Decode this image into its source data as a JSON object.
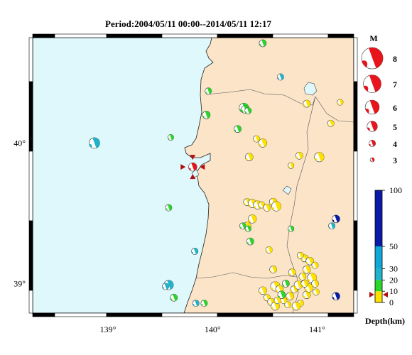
{
  "title": "Period:2004/05/11 00:00--2014/05/11 12:17",
  "lon_ticks": [
    "139°",
    "140°",
    "141°"
  ],
  "lat_ticks": [
    "40°",
    "39°"
  ],
  "legend": {
    "header": "M",
    "magnitudes": [
      "8",
      "7",
      "6",
      "5",
      "4",
      "3"
    ],
    "depth_ticks": [
      "100",
      "50",
      "30",
      "20",
      "10",
      "0"
    ],
    "depth_label": "Depth(km)"
  },
  "colors": {
    "sea": "#dff8fb",
    "land": "#fbe4c8",
    "shallow": "#ffe100",
    "mid": "#2bd62b",
    "deep": "#20b4cc",
    "deepest": "#0a1aa8",
    "recent": "#e8141c",
    "recent_marker": "#b01010"
  },
  "events": [
    {
      "lon": 140.48,
      "lat": 40.71,
      "m": 3.4,
      "d": "mid"
    },
    {
      "lon": 140.65,
      "lat": 40.47,
      "m": 3.3,
      "d": "deep"
    },
    {
      "lon": 139.96,
      "lat": 40.37,
      "m": 3.3,
      "d": "mid"
    },
    {
      "lon": 140.3,
      "lat": 40.25,
      "m": 3.8,
      "d": "mid"
    },
    {
      "lon": 140.31,
      "lat": 40.24,
      "m": 3.5,
      "d": "mid"
    },
    {
      "lon": 140.34,
      "lat": 40.23,
      "m": 3.3,
      "d": "mid"
    },
    {
      "lon": 140.24,
      "lat": 40.1,
      "m": 3.4,
      "d": "mid"
    },
    {
      "lon": 139.94,
      "lat": 40.2,
      "m": 3.5,
      "d": "mid"
    },
    {
      "lon": 139.6,
      "lat": 40.04,
      "m": 3.2,
      "d": "mid"
    },
    {
      "lon": 138.87,
      "lat": 40.0,
      "m": 4.0,
      "d": "deep"
    },
    {
      "lon": 140.9,
      "lat": 40.28,
      "m": 3.4,
      "d": "shallow"
    },
    {
      "lon": 141.13,
      "lat": 40.14,
      "m": 3.3,
      "d": "shallow"
    },
    {
      "lon": 141.22,
      "lat": 40.29,
      "m": 3.2,
      "d": "shallow"
    },
    {
      "lon": 140.42,
      "lat": 40.03,
      "m": 3.3,
      "d": "shallow"
    },
    {
      "lon": 140.48,
      "lat": 40.0,
      "m": 3.6,
      "d": "shallow"
    },
    {
      "lon": 140.35,
      "lat": 39.9,
      "m": 3.5,
      "d": "shallow"
    },
    {
      "lon": 140.75,
      "lat": 39.84,
      "m": 3.2,
      "d": "shallow"
    },
    {
      "lon": 140.83,
      "lat": 39.91,
      "m": 3.4,
      "d": "shallow"
    },
    {
      "lon": 141.02,
      "lat": 39.9,
      "m": 3.8,
      "d": "shallow"
    },
    {
      "lon": 140.33,
      "lat": 39.58,
      "m": 3.4,
      "d": "shallow"
    },
    {
      "lon": 140.38,
      "lat": 39.57,
      "m": 3.6,
      "d": "shallow"
    },
    {
      "lon": 140.43,
      "lat": 39.56,
      "m": 3.6,
      "d": "shallow"
    },
    {
      "lon": 140.47,
      "lat": 39.56,
      "m": 3.3,
      "d": "shallow"
    },
    {
      "lon": 140.52,
      "lat": 39.54,
      "m": 3.4,
      "d": "shallow"
    },
    {
      "lon": 140.58,
      "lat": 39.58,
      "m": 3.5,
      "d": "shallow"
    },
    {
      "lon": 140.61,
      "lat": 39.55,
      "m": 3.8,
      "d": "shallow"
    },
    {
      "lon": 140.38,
      "lat": 39.46,
      "m": 3.6,
      "d": "shallow"
    },
    {
      "lon": 140.33,
      "lat": 39.41,
      "m": 3.5,
      "d": "shallow"
    },
    {
      "lon": 140.29,
      "lat": 39.41,
      "m": 3.3,
      "d": "mid"
    },
    {
      "lon": 140.34,
      "lat": 39.39,
      "m": 3.2,
      "d": "mid"
    },
    {
      "lon": 140.75,
      "lat": 39.39,
      "m": 3.2,
      "d": "mid"
    },
    {
      "lon": 140.36,
      "lat": 39.3,
      "m": 3.4,
      "d": "mid"
    },
    {
      "lon": 141.18,
      "lat": 39.46,
      "m": 3.5,
      "d": "deepest"
    },
    {
      "lon": 141.14,
      "lat": 39.41,
      "m": 3.3,
      "d": "deep"
    },
    {
      "lon": 139.58,
      "lat": 39.54,
      "m": 3.3,
      "d": "mid"
    },
    {
      "lon": 139.83,
      "lat": 39.23,
      "m": 3.3,
      "d": "deep"
    },
    {
      "lon": 139.58,
      "lat": 38.99,
      "m": 3.8,
      "d": "deep"
    },
    {
      "lon": 139.55,
      "lat": 38.98,
      "m": 3.3,
      "d": "deep"
    },
    {
      "lon": 139.63,
      "lat": 38.9,
      "m": 3.4,
      "d": "mid"
    },
    {
      "lon": 139.84,
      "lat": 38.86,
      "m": 3.3,
      "d": "deep"
    },
    {
      "lon": 139.92,
      "lat": 38.86,
      "m": 3.3,
      "d": "mid"
    },
    {
      "lon": 141.18,
      "lat": 38.91,
      "m": 3.5,
      "d": "deepest"
    },
    {
      "lon": 140.54,
      "lat": 39.24,
      "m": 3.3,
      "d": "shallow"
    },
    {
      "lon": 140.58,
      "lat": 39.1,
      "m": 3.4,
      "d": "shallow"
    },
    {
      "lon": 140.6,
      "lat": 38.98,
      "m": 3.8,
      "d": "shallow"
    },
    {
      "lon": 140.64,
      "lat": 38.96,
      "m": 3.5,
      "d": "shallow"
    },
    {
      "lon": 140.48,
      "lat": 38.95,
      "m": 3.5,
      "d": "shallow"
    },
    {
      "lon": 140.52,
      "lat": 38.9,
      "m": 3.3,
      "d": "shallow"
    },
    {
      "lon": 140.56,
      "lat": 38.87,
      "m": 3.4,
      "d": "shallow"
    },
    {
      "lon": 140.6,
      "lat": 38.84,
      "m": 3.6,
      "d": "shallow"
    },
    {
      "lon": 140.72,
      "lat": 38.85,
      "m": 3.3,
      "d": "shallow"
    },
    {
      "lon": 140.78,
      "lat": 38.96,
      "m": 3.4,
      "d": "shallow"
    },
    {
      "lon": 140.82,
      "lat": 38.99,
      "m": 3.6,
      "d": "shallow"
    },
    {
      "lon": 140.86,
      "lat": 39.05,
      "m": 3.4,
      "d": "shallow"
    },
    {
      "lon": 140.9,
      "lat": 39.1,
      "m": 3.5,
      "d": "shallow"
    },
    {
      "lon": 140.95,
      "lat": 39.04,
      "m": 3.8,
      "d": "shallow"
    },
    {
      "lon": 140.98,
      "lat": 39.0,
      "m": 3.4,
      "d": "shallow"
    },
    {
      "lon": 140.9,
      "lat": 38.92,
      "m": 3.5,
      "d": "shallow"
    },
    {
      "lon": 140.84,
      "lat": 38.86,
      "m": 3.3,
      "d": "shallow"
    },
    {
      "lon": 140.8,
      "lat": 38.84,
      "m": 3.6,
      "d": "shallow"
    },
    {
      "lon": 140.68,
      "lat": 38.88,
      "m": 3.3,
      "d": "shallow"
    },
    {
      "lon": 140.74,
      "lat": 38.91,
      "m": 3.5,
      "d": "shallow"
    },
    {
      "lon": 140.88,
      "lat": 39.18,
      "m": 3.4,
      "d": "shallow"
    },
    {
      "lon": 140.93,
      "lat": 39.16,
      "m": 3.5,
      "d": "shallow"
    },
    {
      "lon": 140.98,
      "lat": 39.13,
      "m": 3.3,
      "d": "shallow"
    },
    {
      "lon": 140.84,
      "lat": 39.2,
      "m": 3.3,
      "d": "shallow"
    },
    {
      "lon": 140.7,
      "lat": 39.0,
      "m": 3.4,
      "d": "mid"
    },
    {
      "lon": 140.92,
      "lat": 38.97,
      "m": 3.6,
      "d": "shallow"
    },
    {
      "lon": 140.66,
      "lat": 38.92,
      "m": 3.5,
      "d": "mid"
    },
    {
      "lon": 140.99,
      "lat": 38.94,
      "m": 3.3,
      "d": "shallow"
    },
    {
      "lon": 140.62,
      "lat": 38.88,
      "m": 3.3,
      "d": "shallow"
    },
    {
      "lon": 140.76,
      "lat": 39.08,
      "m": 3.4,
      "d": "shallow"
    },
    {
      "lon": 140.88,
      "lat": 39.0,
      "m": 3.4,
      "d": "shallow"
    }
  ],
  "recent_event": {
    "lon": 139.81,
    "lat": 39.83,
    "m": 3.6
  }
}
